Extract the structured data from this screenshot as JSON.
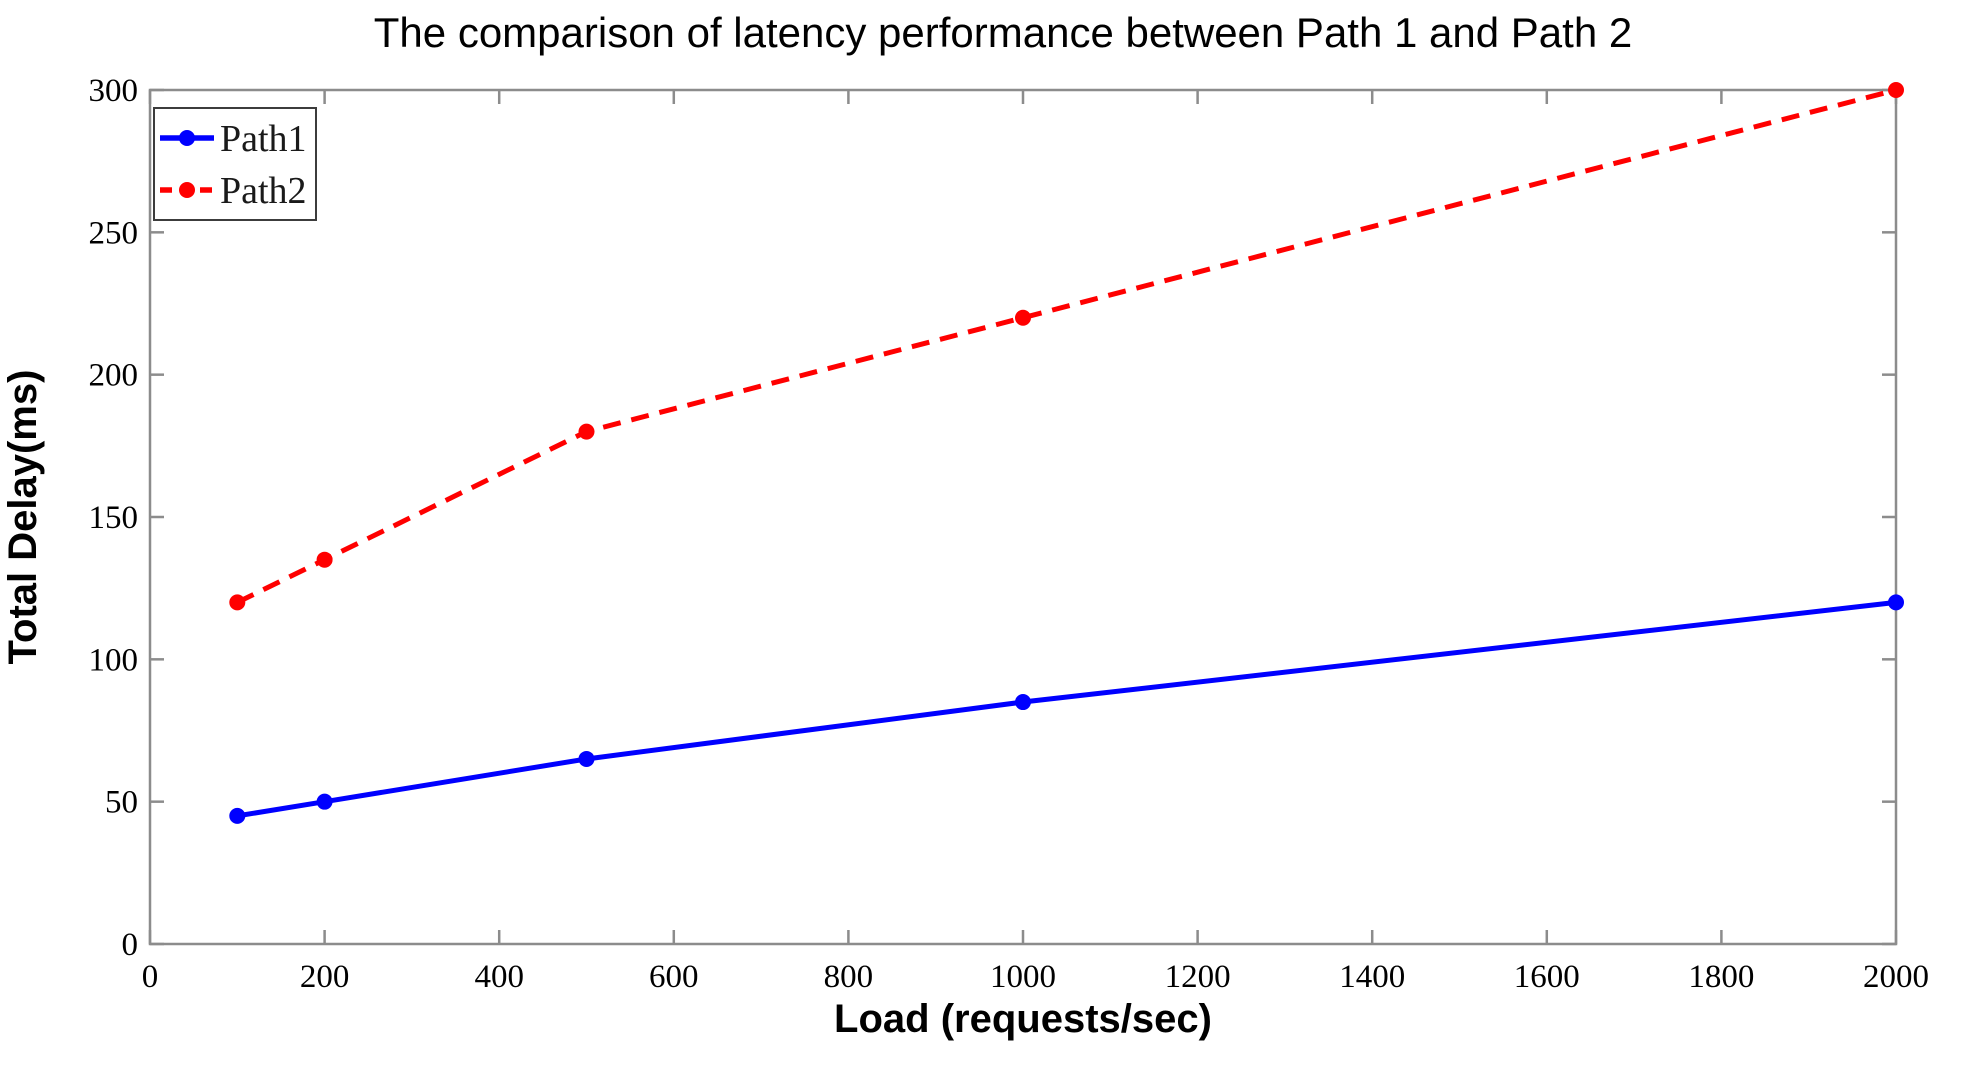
{
  "chart_data": {
    "type": "line",
    "title": "The comparison of latency performance between Path 1 and Path 2",
    "xlabel": "Load (requests/sec)",
    "ylabel": "Total Delay(ms)",
    "xlim": [
      0,
      2000
    ],
    "ylim": [
      0,
      300
    ],
    "x_ticks": [
      0,
      200,
      400,
      600,
      800,
      1000,
      1200,
      1400,
      1600,
      1800,
      2000
    ],
    "y_ticks": [
      0,
      50,
      100,
      150,
      200,
      250,
      300
    ],
    "grid": false,
    "legend_position": "top-left",
    "x": [
      100,
      200,
      500,
      1000,
      2000
    ],
    "series": [
      {
        "name": "Path1",
        "color": "#0000ff",
        "line_style": "solid",
        "marker": "circle",
        "values": [
          45,
          50,
          65,
          85,
          120
        ]
      },
      {
        "name": "Path2",
        "color": "#ff0000",
        "line_style": "dashed",
        "marker": "circle",
        "values": [
          120,
          135,
          180,
          220,
          300
        ]
      }
    ],
    "colors": {
      "background": "#ffffff",
      "axis": "#8c8c8c",
      "legend_border": "#3c3c3c",
      "text": "#000000"
    }
  }
}
